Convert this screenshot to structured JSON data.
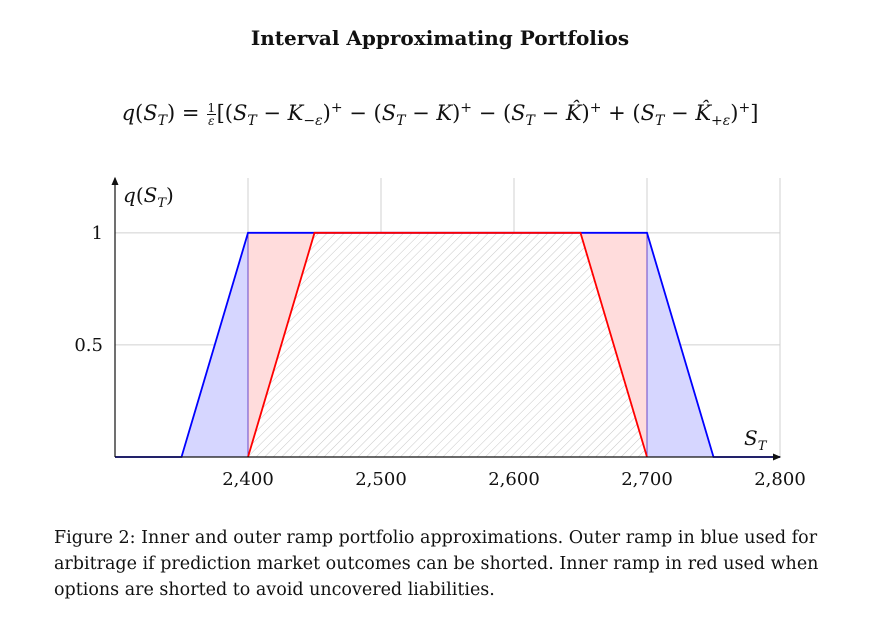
{
  "figure": {
    "title": "Interval Approximating Portfolios",
    "formula": "q(S_T) = (1/ε)[(S_T − K_{−ε})⁺ − (S_T − K)⁺ − (S_T − K̂)⁺ + (S_T − K̂_{+ε})⁺]",
    "caption": "Figure 2: Inner and outer ramp portfolio approximations. Outer ramp in blue used for arbitrage if prediction market outcomes can be shorted. Inner ramp in red used when options are shorted to avoid uncovered liabilities."
  },
  "chart_data": {
    "type": "line",
    "xlabel": "S_T",
    "ylabel": "q(S_T)",
    "xlim": [
      2300,
      2800
    ],
    "ylim": [
      0,
      1.2
    ],
    "xticks": [
      2400,
      2500,
      2600,
      2700,
      2800
    ],
    "xtick_labels": [
      "2,400",
      "2,500",
      "2,600",
      "2,700",
      "2,800"
    ],
    "yticks": [
      0.5,
      1
    ],
    "ytick_labels": [
      "0.5",
      "1"
    ],
    "grid": true,
    "series": [
      {
        "name": "Outer ramp",
        "color": "#0000ff",
        "fill": "#d6d6ff",
        "x": [
          2300,
          2350,
          2400,
          2700,
          2750,
          2800
        ],
        "y": [
          0,
          0,
          1,
          1,
          0,
          0
        ]
      },
      {
        "name": "Inner ramp",
        "color": "#ff0000",
        "fill": "#ffdcdc",
        "x": [
          2400,
          2450,
          2650,
          2700
        ],
        "y": [
          0,
          1,
          1,
          0
        ]
      }
    ],
    "hatched_region": {
      "x": [
        2400,
        2700
      ]
    }
  }
}
